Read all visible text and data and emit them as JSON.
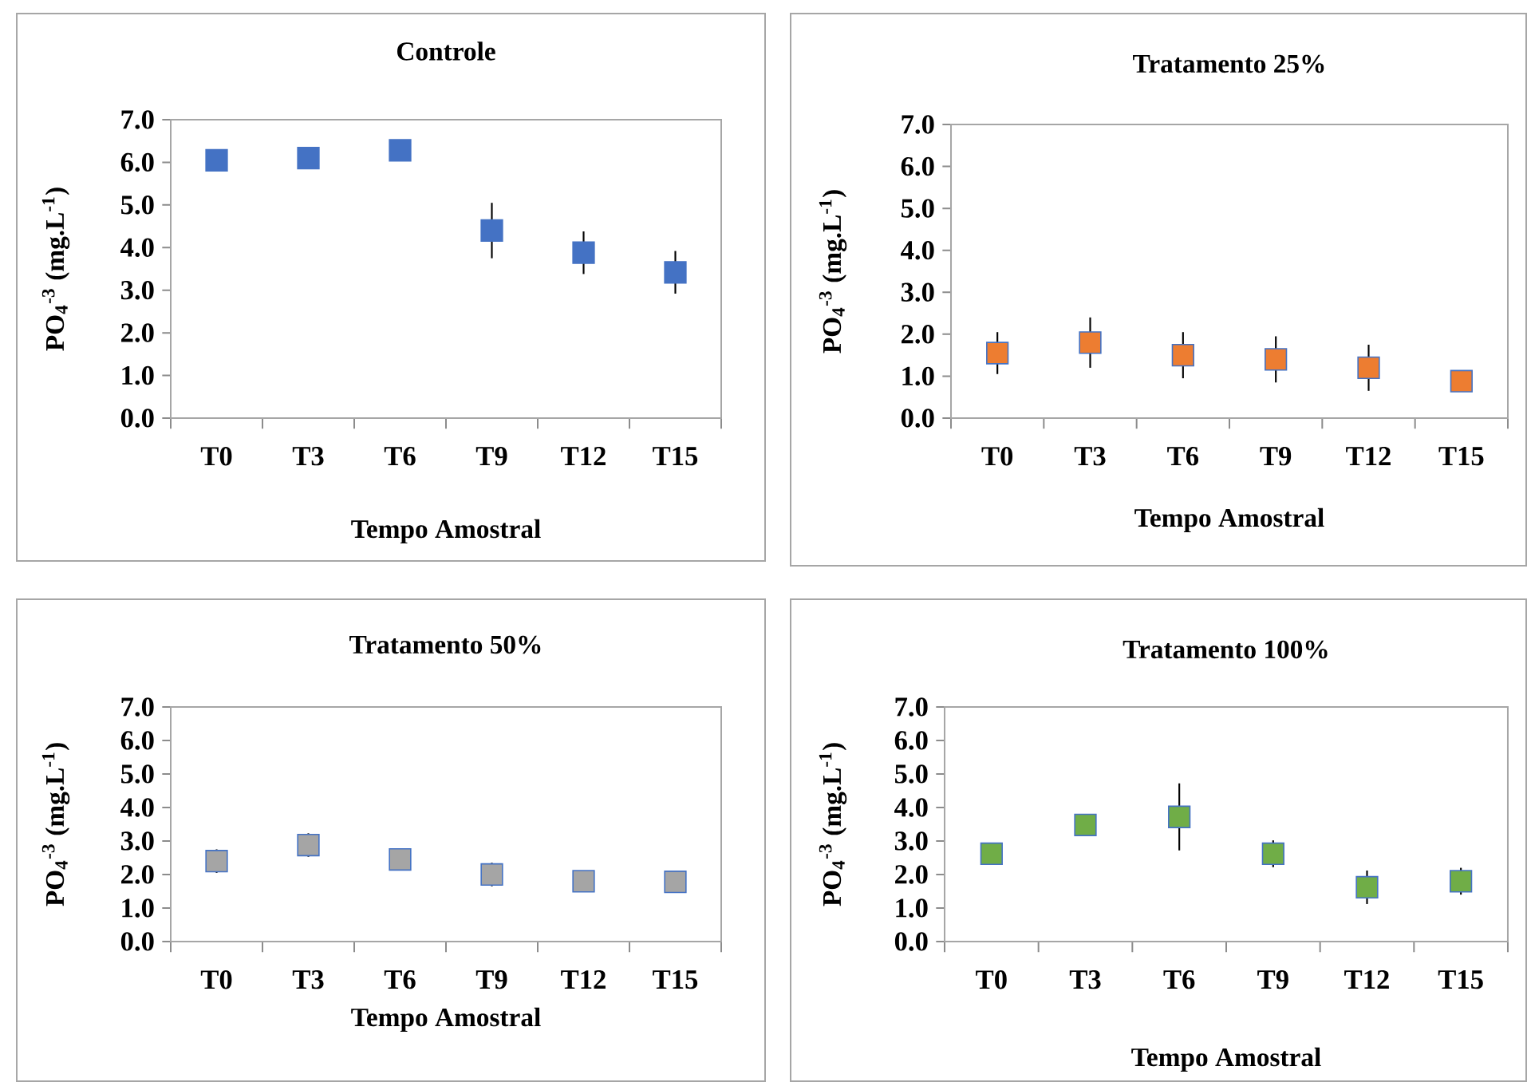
{
  "chart_data": [
    {
      "type": "scatter",
      "title": "Controle",
      "xlabel": "Tempo Amostral",
      "ylabel": "PO$_{4}$$^{-3}$ (mg.L$^{-1}$)",
      "categories": [
        "T0",
        "T3",
        "T6",
        "T9",
        "T12",
        "T15"
      ],
      "ylim": [
        0,
        7
      ],
      "yticks": [
        {
          "value": 0,
          "label": "0.0"
        },
        {
          "value": 1,
          "label": "1.0"
        },
        {
          "value": 2,
          "label": "2.0"
        },
        {
          "value": 3,
          "label": "3.0"
        },
        {
          "value": 4,
          "label": "4.0"
        },
        {
          "value": 5,
          "label": "5.0"
        },
        {
          "value": 6,
          "label": "6.0"
        },
        {
          "value": 7,
          "label": "7.0"
        }
      ],
      "marker": "square",
      "grid": false,
      "series": [
        {
          "color": "#4472c4",
          "values": [
            6.05,
            6.1,
            6.28,
            4.4,
            3.88,
            3.42
          ],
          "errors": [
            null,
            null,
            null,
            0.65,
            0.5,
            0.5
          ]
        }
      ]
    },
    {
      "type": "scatter",
      "title": "Tratamento 25%",
      "xlabel": "Tempo Amostral",
      "ylabel": "PO$_{4}$$^{-3}$ (mg.L$^{-1}$)",
      "categories": [
        "T0",
        "T3",
        "T6",
        "T9",
        "T12",
        "T15"
      ],
      "ylim": [
        0,
        7
      ],
      "yticks": [
        {
          "value": 0,
          "label": "0.0"
        },
        {
          "value": 1,
          "label": "1.0"
        },
        {
          "value": 2,
          "label": "2.0"
        },
        {
          "value": 3,
          "label": "3.0"
        },
        {
          "value": 4,
          "label": "4.0"
        },
        {
          "value": 5,
          "label": "5.0"
        },
        {
          "value": 6,
          "label": "6.0"
        },
        {
          "value": 7,
          "label": "7.0"
        }
      ],
      "marker": "square",
      "grid": false,
      "series": [
        {
          "color": "#ed7d31",
          "values": [
            1.55,
            1.8,
            1.5,
            1.4,
            1.2,
            0.88
          ],
          "errors": [
            0.5,
            0.6,
            0.55,
            0.55,
            0.55,
            null
          ]
        }
      ]
    },
    {
      "type": "scatter",
      "title": "Tratamento 50%",
      "xlabel": "Tempo Amostral",
      "ylabel": "PO$_{4}$$^{-3}$ (mg.L$^{-1}$)",
      "categories": [
        "T0",
        "T3",
        "T6",
        "T9",
        "T12",
        "T15"
      ],
      "ylim": [
        0,
        7
      ],
      "yticks": [
        {
          "value": 0,
          "label": "0.0"
        },
        {
          "value": 1,
          "label": "1.0"
        },
        {
          "value": 2,
          "label": "2.0"
        },
        {
          "value": 3,
          "label": "3.0"
        },
        {
          "value": 4,
          "label": "4.0"
        },
        {
          "value": 5,
          "label": "5.0"
        },
        {
          "value": 6,
          "label": "6.0"
        },
        {
          "value": 7,
          "label": "7.0"
        }
      ],
      "marker": "square",
      "grid": false,
      "series": [
        {
          "color": "#a5a5a5",
          "values": [
            2.4,
            2.88,
            2.45,
            2.0,
            1.8,
            1.78
          ],
          "errors": [
            0.35,
            0.35,
            null,
            0.35,
            null,
            null
          ]
        }
      ]
    },
    {
      "type": "scatter",
      "title": "Tratamento 100%",
      "xlabel": "Tempo Amostral",
      "ylabel": "PO$_{4}$$^{-3}$ (mg.L$^{-1}$)",
      "categories": [
        "T0",
        "T3",
        "T6",
        "T9",
        "T12",
        "T15"
      ],
      "ylim": [
        0,
        7
      ],
      "yticks": [
        {
          "value": 0,
          "label": "0.0"
        },
        {
          "value": 1,
          "label": "1.0"
        },
        {
          "value": 2,
          "label": "2.0"
        },
        {
          "value": 3,
          "label": "3.0"
        },
        {
          "value": 4,
          "label": "4.0"
        },
        {
          "value": 5,
          "label": "5.0"
        },
        {
          "value": 6,
          "label": "6.0"
        },
        {
          "value": 7,
          "label": "7.0"
        }
      ],
      "marker": "square",
      "grid": false,
      "series": [
        {
          "color": "#70ad47",
          "values": [
            2.62,
            3.48,
            3.72,
            2.62,
            1.62,
            1.8
          ],
          "errors": [
            null,
            null,
            1.0,
            0.4,
            0.5,
            0.4
          ]
        }
      ]
    }
  ]
}
